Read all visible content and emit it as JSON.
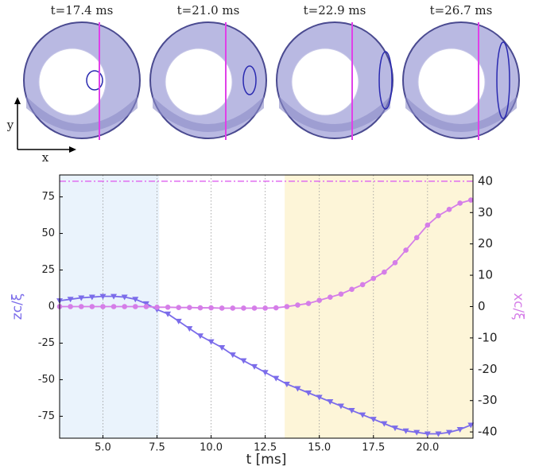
{
  "snapshots": {
    "titles": [
      "t=17.4 ms",
      "t=21.0 ms",
      "t=22.9 ms",
      "t=26.7 ms"
    ],
    "axes": {
      "x": "x",
      "y": "y"
    }
  },
  "chart_data": {
    "type": "line",
    "x_label": "t [ms]",
    "y_label": "zc/ξ",
    "y2_label": "xc/ξ",
    "x": [
      3.0,
      3.5,
      4.0,
      4.5,
      5.0,
      5.5,
      6.0,
      6.5,
      7.0,
      7.5,
      8.0,
      8.5,
      9.0,
      9.5,
      10.0,
      10.5,
      11.0,
      11.5,
      12.0,
      12.5,
      13.0,
      13.5,
      14.0,
      14.5,
      15.0,
      15.5,
      16.0,
      16.5,
      17.0,
      17.5,
      18.0,
      18.5,
      19.0,
      19.5,
      20.0,
      20.5,
      21.0,
      21.5,
      22.0
    ],
    "series": [
      {
        "name": "zc/ξ",
        "color": "#7b6cea",
        "marker": "triangle-down",
        "values": [
          4,
          5,
          6,
          6.5,
          7,
          7,
          6.5,
          5,
          2,
          -2,
          -5,
          -10,
          -15,
          -20,
          -24,
          -28,
          -33,
          -37,
          -41,
          -45,
          -49,
          -53,
          -56,
          -59,
          -62,
          -65,
          -68,
          -71,
          -74,
          -77,
          -80,
          -83,
          -85,
          -86,
          -87,
          -87,
          -86,
          -84,
          -81
        ]
      },
      {
        "name": "xc/ξ",
        "color": "#d57ee8",
        "marker": "circle",
        "axis": "y2",
        "values": [
          0,
          0,
          0,
          0,
          0,
          0,
          0,
          0,
          0,
          -0.2,
          -0.2,
          -0.3,
          -0.3,
          -0.4,
          -0.4,
          -0.5,
          -0.5,
          -0.5,
          -0.5,
          -0.5,
          -0.4,
          0,
          0.5,
          1,
          2,
          3,
          4,
          5.5,
          7,
          9,
          11,
          14,
          18,
          22,
          26,
          29,
          31,
          33,
          34
        ]
      }
    ],
    "hlines": [
      {
        "value": 40,
        "axis": "y2",
        "color": "#e06ef0"
      }
    ],
    "spans": [
      {
        "x": [
          3.0,
          7.6
        ],
        "color": "#eaf3fc"
      },
      {
        "x": [
          13.4,
          22.1
        ],
        "color": "#fdf5d8"
      }
    ],
    "xlim": [
      3.0,
      22.1
    ],
    "xticks": [
      {
        "value": 5,
        "label": "5.0"
      },
      7.5,
      {
        "value": 10,
        "label": "10.0"
      },
      12.5,
      {
        "value": 15,
        "label": "15.0"
      },
      17.5,
      {
        "value": 20,
        "label": "20.0"
      }
    ],
    "ylim": [
      -90,
      90
    ],
    "yticks": [
      -75,
      -50,
      -25,
      0,
      25,
      50,
      75
    ],
    "y2lim": [
      -42,
      42
    ],
    "y2ticks": [
      -40,
      -30,
      -20,
      -10,
      0,
      10,
      20,
      30,
      40
    ],
    "grid": true
  }
}
